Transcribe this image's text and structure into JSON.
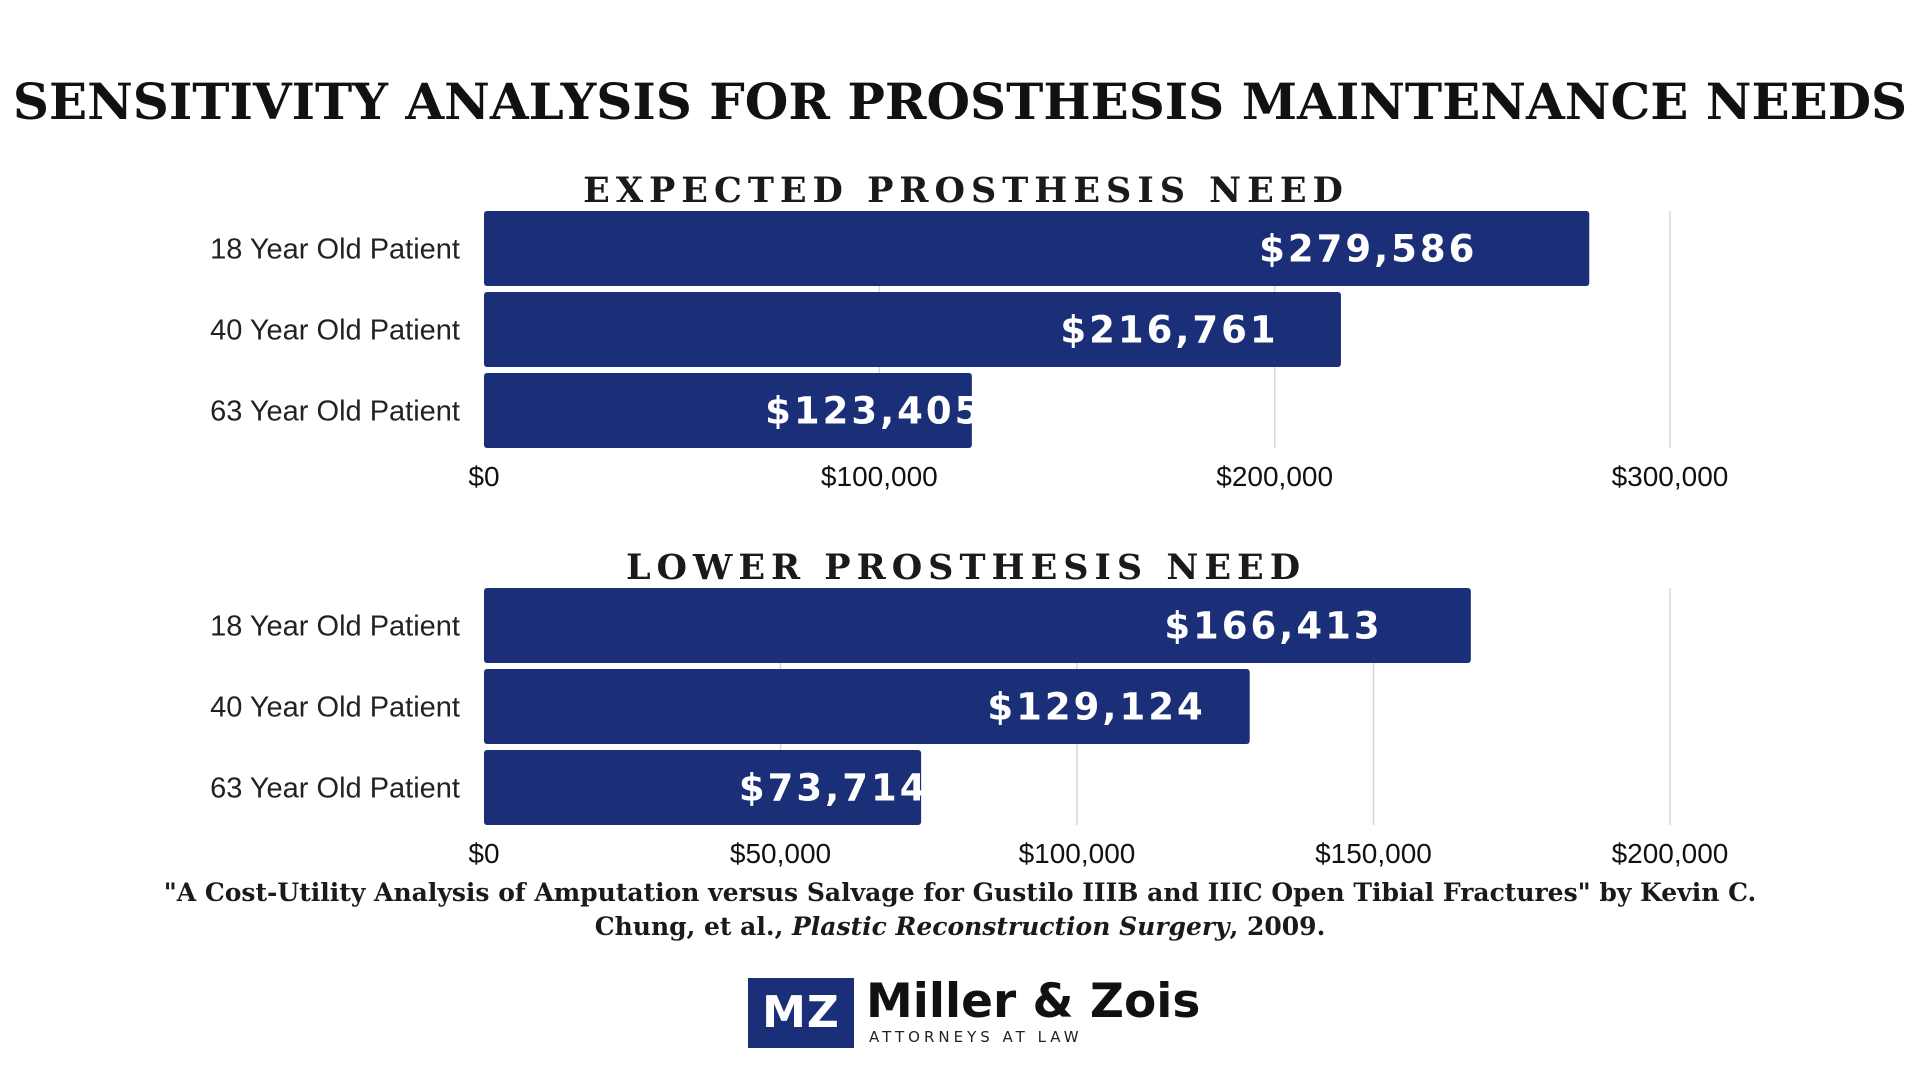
{
  "title": "SENSITIVITY ANALYSIS FOR PROSTHESIS MAINTENANCE NEEDS",
  "chart_data": [
    {
      "type": "bar",
      "orientation": "horizontal",
      "title": "EXPECTED PROSTHESIS NEED",
      "categories": [
        "18 Year Old Patient",
        "40 Year Old Patient",
        "63 Year Old Patient"
      ],
      "values": [
        279586,
        216761,
        123405
      ],
      "data_labels": [
        "$279,586",
        "$216,761",
        "$123,405"
      ],
      "xlim": [
        0,
        300000
      ],
      "x_ticks": [
        0,
        100000,
        200000,
        300000
      ],
      "x_tick_labels": [
        "$0",
        "$100,000",
        "$200,000",
        "$300,000"
      ],
      "grid": true,
      "bar_color": "#1b2f78"
    },
    {
      "type": "bar",
      "orientation": "horizontal",
      "title": "LOWER PROSTHESIS NEED",
      "categories": [
        "18 Year Old Patient",
        "40 Year Old Patient",
        "63 Year Old Patient"
      ],
      "values": [
        166413,
        129124,
        73714
      ],
      "data_labels": [
        "$166,413",
        "$129,124",
        "$73,714"
      ],
      "xlim": [
        0,
        200000
      ],
      "x_ticks": [
        0,
        50000,
        100000,
        150000,
        200000
      ],
      "x_tick_labels": [
        "$0",
        "$50,000",
        "$100,000",
        "$150,000",
        "$200,000"
      ],
      "grid": true,
      "bar_color": "#1b2f78"
    }
  ],
  "citation": {
    "quote": "\"A Cost-Utility Analysis of Amputation versus Salvage for Gustilo IIIB and IIIC Open Tibial Fractures\" by Kevin C. Chung, et al.,",
    "journal": "Plastic Reconstruction  Surgery",
    "year": ", 2009."
  },
  "logo": {
    "initials": "MZ",
    "name": "Miller & Zois",
    "tagline": "ATTORNEYS AT LAW"
  }
}
